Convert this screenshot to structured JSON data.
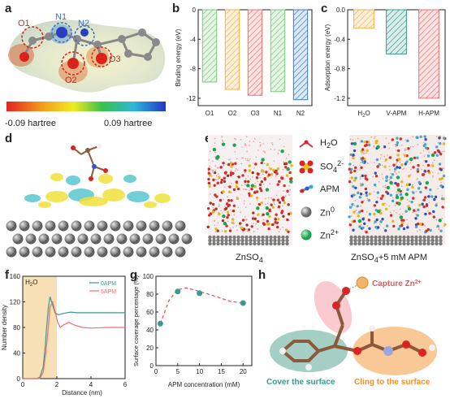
{
  "panels": {
    "a": {
      "letter": "a",
      "atom_labels": [
        "O1",
        "N1",
        "N2",
        "O2",
        "O3"
      ],
      "colorbar_min": "-0.09 hartree",
      "colorbar_max": "0.09 hartree"
    },
    "b": {
      "letter": "b"
    },
    "c": {
      "letter": "c"
    },
    "d": {
      "letter": "d"
    },
    "e": {
      "letter": "e",
      "legend": [
        {
          "label": "H",
          "sub": "2",
          "rest": "O",
          "icon": "water-icon"
        },
        {
          "label": "SO",
          "sub": "4",
          "sup": "2-",
          "icon": "sulfate-icon"
        },
        {
          "label": "APM",
          "icon": "apm-molecule-icon"
        },
        {
          "label": "Zn",
          "sup": "0",
          "icon": "zn-metal-atom-icon"
        },
        {
          "label": "Zn",
          "sup": "2+",
          "icon": "zn-ion-icon"
        }
      ],
      "caption_left": {
        "text": "ZnSO",
        "sub": "4"
      },
      "caption_right": {
        "text": "ZnSO",
        "sub": "4",
        "rest": "+5 mM APM"
      }
    },
    "f": {
      "letter": "f"
    },
    "g": {
      "letter": "g"
    },
    "h": {
      "letter": "h",
      "labels": {
        "capture": "Capture Zn",
        "capture_sup": "2+",
        "cover": "Cover the surface",
        "cling": "Cling to the surface"
      }
    }
  },
  "colors": {
    "teal": "#3a9a8f",
    "salmon": "#f26d6d",
    "orange": "#f5b041",
    "blue": "#3b7dc4",
    "green": "#7cc97b",
    "red_dashed": "#ef4b4b",
    "highlight": "#f7e0b5"
  },
  "chart_data": [
    {
      "id": "b",
      "type": "bar",
      "categories": [
        "O1",
        "O2",
        "O3",
        "N1",
        "N2"
      ],
      "values": [
        -9.8,
        -10.8,
        -11.6,
        -11.1,
        -12.2
      ],
      "bar_colors": [
        "#7cc97b",
        "#f5b041",
        "#f26d6d",
        "#7cc97b",
        "#3b7dc4"
      ],
      "ylabel": "Binding energy (eV)",
      "ylim": [
        -13,
        0
      ],
      "yticks": [
        0,
        -4,
        -8,
        -12
      ],
      "ytick_labels": [
        "0",
        "-4",
        "-8",
        "-12"
      ]
    },
    {
      "id": "c",
      "type": "bar",
      "categories": [
        "H2O",
        "V-APM",
        "H-APM"
      ],
      "category_display": [
        {
          "main": "H",
          "sub": "2",
          "rest": "O"
        },
        {
          "main": "V-APM"
        },
        {
          "main": "H-APM"
        }
      ],
      "values": [
        -0.25,
        -0.6,
        -1.2
      ],
      "bar_colors": [
        "#f5b041",
        "#3a9a8f",
        "#f26d6d"
      ],
      "ylabel": "Adsorption energy (eV)",
      "ylim": [
        -1.3,
        0
      ],
      "yticks": [
        0,
        -0.4,
        -0.8,
        -1.2
      ],
      "ytick_labels": [
        "0.0",
        "-0.4",
        "-0.8",
        "-1.2"
      ]
    },
    {
      "id": "f",
      "type": "line",
      "xlabel": "Distance (nm)",
      "ylabel": "Number density",
      "xlim": [
        0,
        6
      ],
      "ylim": [
        0,
        160
      ],
      "xticks": [
        0,
        2,
        4,
        6
      ],
      "yticks": [
        0,
        40,
        80,
        120,
        160
      ],
      "shaded_region": {
        "x": [
          0,
          2
        ],
        "label": "H2O",
        "label_main": "H",
        "label_sub": "2",
        "label_rest": "O"
      },
      "series": [
        {
          "name": "0APM",
          "color": "#3a9a8f",
          "x": [
            0,
            0.8,
            1.0,
            1.2,
            1.3,
            1.4,
            1.5,
            1.6,
            1.75,
            1.9,
            2.1,
            2.4,
            2.8,
            3.2,
            4,
            5,
            6
          ],
          "y": [
            0,
            0,
            2,
            18,
            45,
            80,
            110,
            128,
            115,
            102,
            100,
            102,
            104,
            103,
            103,
            103,
            103
          ]
        },
        {
          "name": "5APM",
          "color": "#f26d6d",
          "x": [
            0,
            1.0,
            1.2,
            1.35,
            1.5,
            1.6,
            1.75,
            1.9,
            2.05,
            2.2,
            2.4,
            2.7,
            3,
            3.5,
            4,
            5,
            6
          ],
          "y": [
            0,
            0,
            10,
            40,
            80,
            112,
            120,
            105,
            88,
            80,
            84,
            88,
            84,
            80,
            79,
            80,
            80
          ]
        }
      ]
    },
    {
      "id": "g",
      "type": "scatter",
      "xlabel": "APM concentration (mM)",
      "ylabel": "Surface coverage percentage (%)",
      "xlim": [
        0,
        22
      ],
      "ylim": [
        0,
        100
      ],
      "xticks": [
        0,
        5,
        10,
        15,
        20
      ],
      "yticks": [
        0,
        20,
        40,
        60,
        80,
        100
      ],
      "points": {
        "x": [
          1,
          5,
          10,
          20
        ],
        "y": [
          47,
          83,
          81,
          70
        ]
      },
      "trend": {
        "x": [
          1,
          3,
          5,
          7,
          10,
          14,
          17,
          20
        ],
        "y": [
          47,
          73,
          85,
          87,
          83,
          77,
          72,
          70
        ]
      },
      "point_color": "#3a9a8f",
      "trend_color": "#ef4b4b"
    }
  ]
}
